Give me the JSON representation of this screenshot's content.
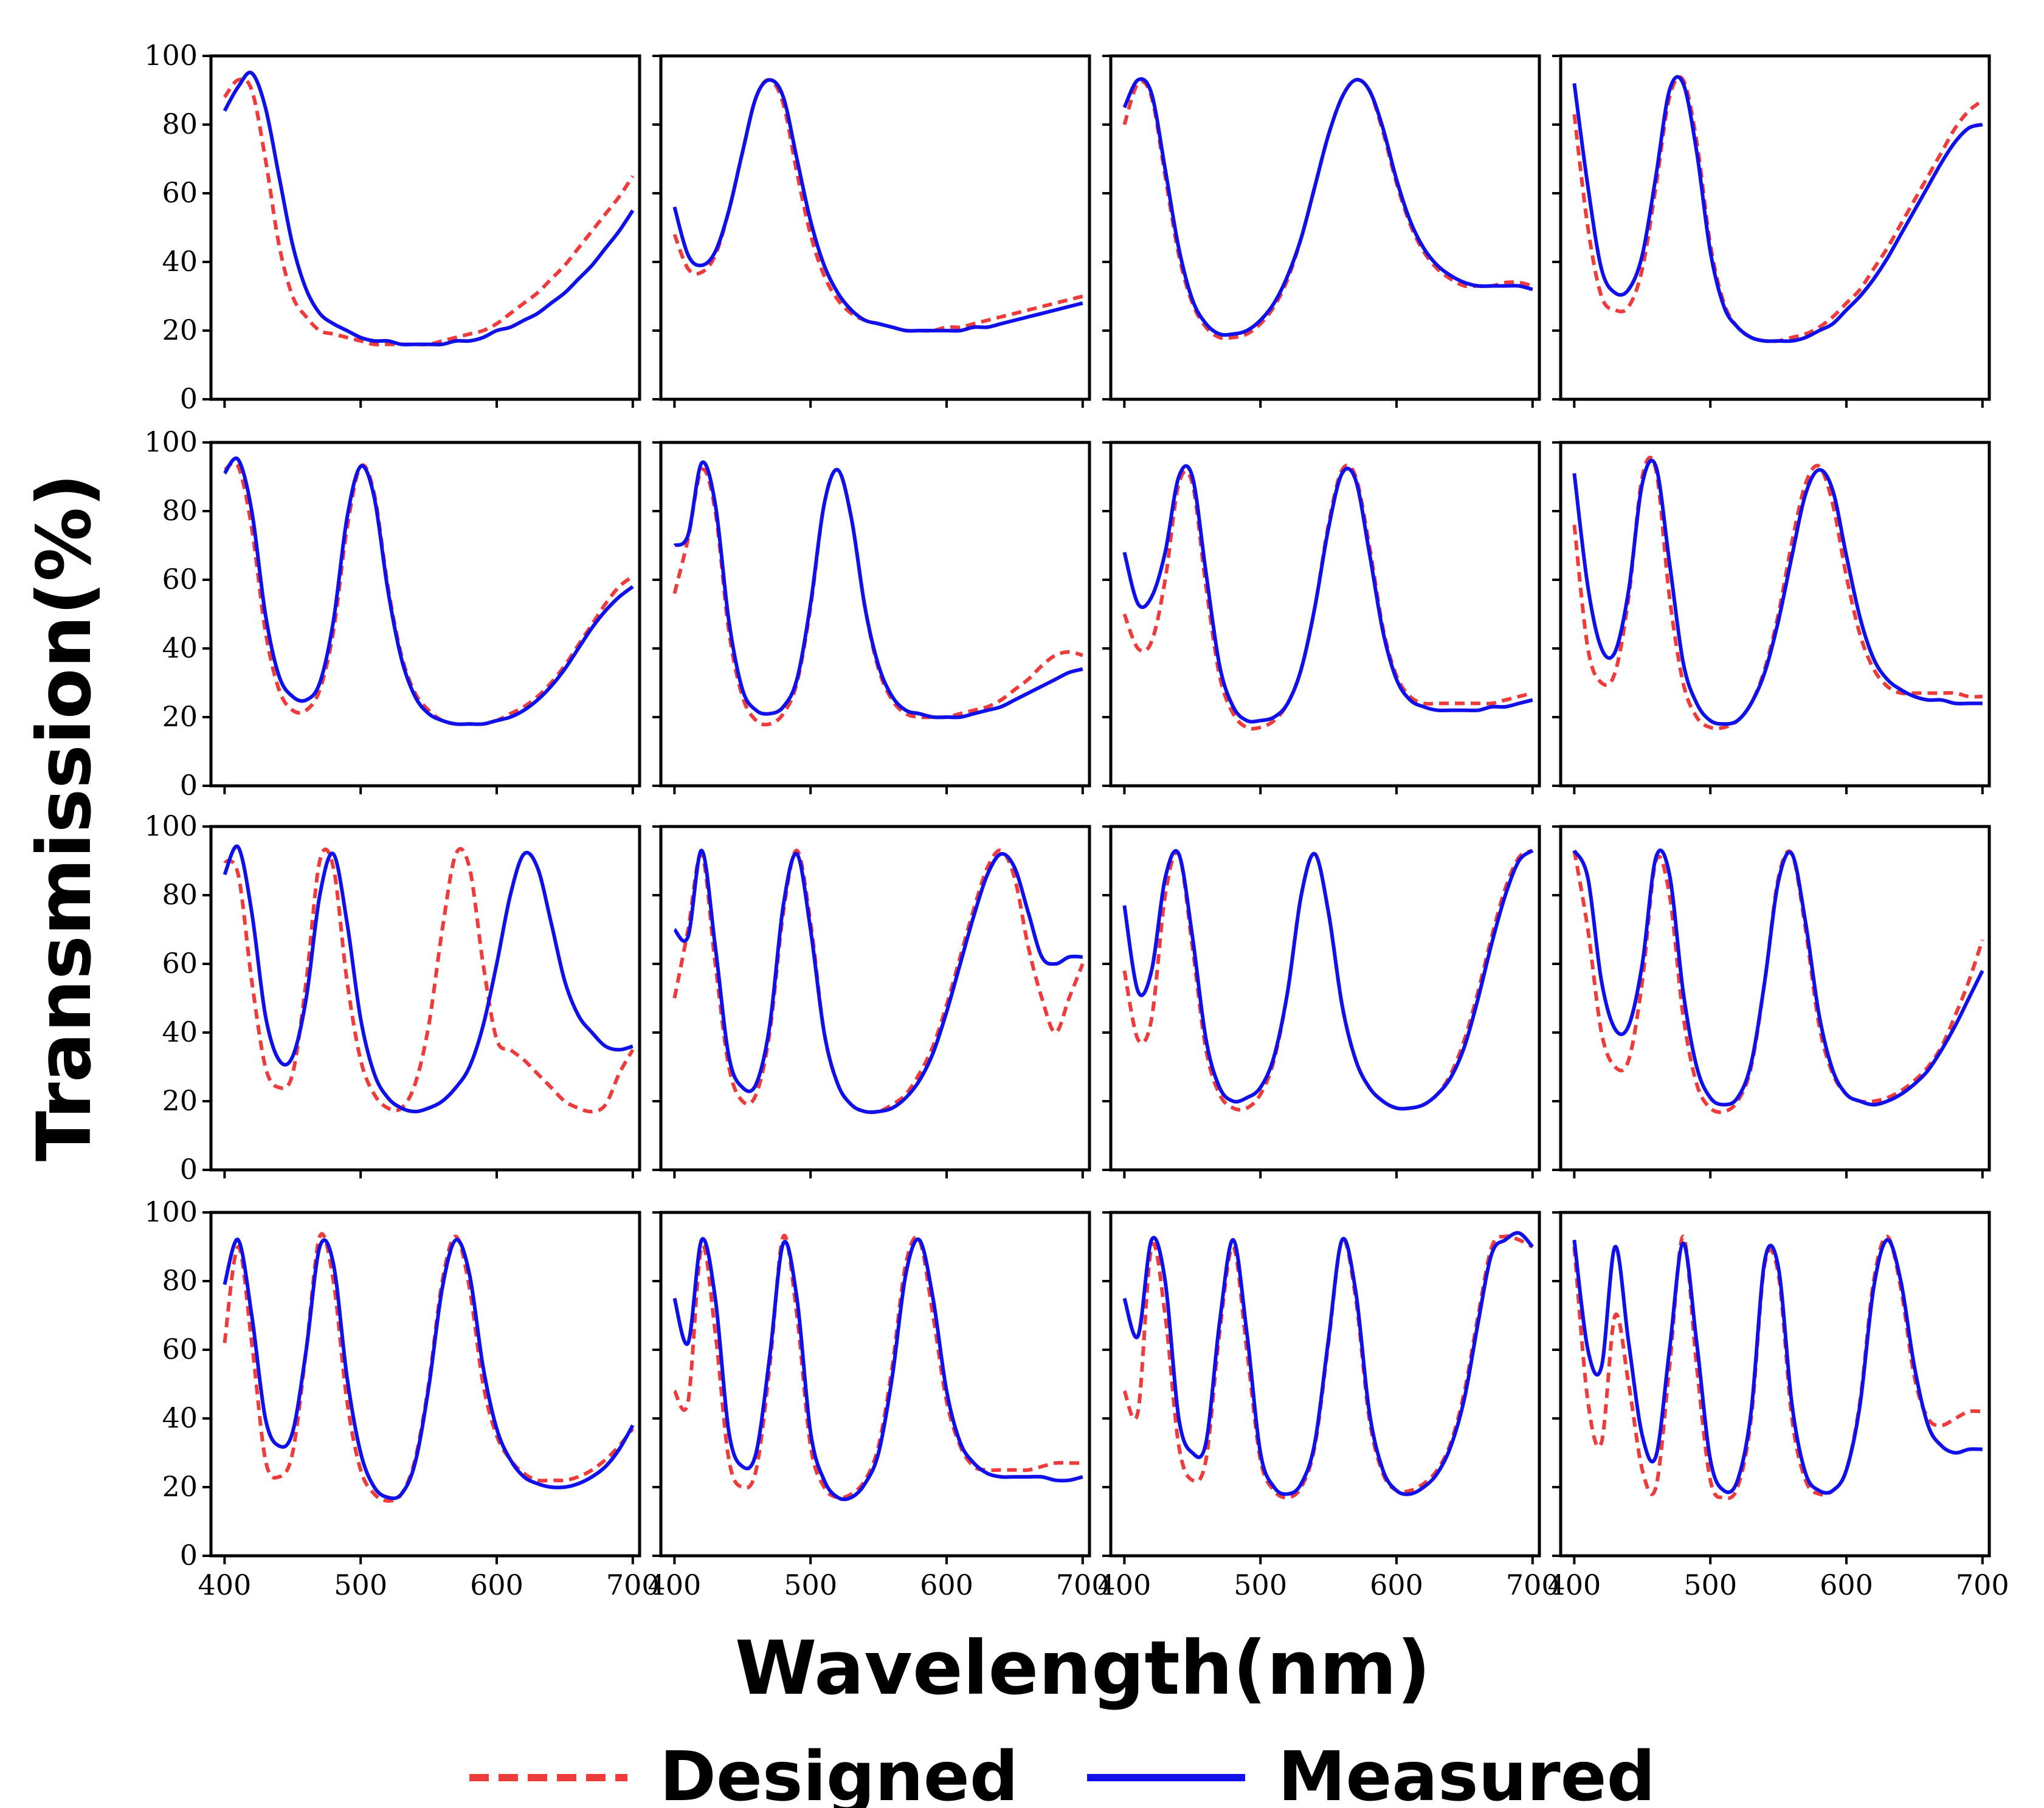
{
  "chart_data": {
    "type": "line",
    "layout": "4x4 grid of small multiples",
    "xlabel": "Wavelength(nm)",
    "ylabel": "Transmission(%)",
    "xlim": [
      390,
      705
    ],
    "ylim": [
      0,
      100
    ],
    "xticks": [
      400,
      500,
      600,
      700
    ],
    "yticks": [
      0,
      20,
      40,
      60,
      80,
      100
    ],
    "grid": false,
    "legend": {
      "placement": "bottom-center",
      "entries": [
        {
          "label": "Designed",
          "color": "#ee3b3b",
          "style": "dashed"
        },
        {
          "label": "Measured",
          "color": "#1010e8",
          "style": "solid"
        }
      ]
    },
    "x": [
      400,
      410,
      420,
      430,
      440,
      450,
      460,
      470,
      480,
      490,
      500,
      510,
      520,
      530,
      540,
      550,
      560,
      570,
      580,
      590,
      600,
      610,
      620,
      630,
      640,
      650,
      660,
      670,
      680,
      690,
      700
    ],
    "panels": [
      {
        "designed": [
          88,
          93,
          90,
          70,
          45,
          30,
          24,
          20,
          19,
          18,
          17,
          16,
          16,
          16,
          16,
          16,
          17,
          18,
          19,
          20,
          22,
          25,
          28,
          31,
          35,
          39,
          44,
          49,
          54,
          59,
          65
        ],
        "measured": [
          84,
          91,
          95,
          85,
          65,
          45,
          32,
          25,
          22,
          20,
          18,
          17,
          17,
          16,
          16,
          16,
          16,
          17,
          17,
          18,
          20,
          21,
          23,
          25,
          28,
          31,
          35,
          39,
          44,
          49,
          55
        ]
      },
      {
        "designed": [
          48,
          38,
          37,
          42,
          55,
          72,
          88,
          93,
          86,
          66,
          48,
          36,
          29,
          25,
          23,
          22,
          21,
          20,
          20,
          20,
          21,
          21,
          22,
          23,
          24,
          25,
          26,
          27,
          28,
          29,
          30
        ],
        "measured": [
          56,
          42,
          39,
          43,
          55,
          72,
          88,
          93,
          88,
          70,
          52,
          39,
          31,
          26,
          23,
          22,
          21,
          20,
          20,
          20,
          20,
          20,
          21,
          21,
          22,
          23,
          24,
          25,
          26,
          27,
          28
        ]
      },
      {
        "designed": [
          80,
          92,
          88,
          65,
          42,
          28,
          21,
          18,
          18,
          19,
          22,
          27,
          35,
          47,
          62,
          77,
          88,
          93,
          90,
          78,
          63,
          51,
          43,
          38,
          35,
          33,
          33,
          33,
          34,
          34,
          33
        ],
        "measured": [
          85,
          93,
          89,
          67,
          44,
          29,
          22,
          19,
          19,
          20,
          23,
          28,
          36,
          47,
          62,
          77,
          88,
          93,
          90,
          79,
          64,
          52,
          44,
          39,
          36,
          34,
          33,
          33,
          33,
          33,
          32
        ]
      },
      {
        "designed": [
          83,
          50,
          30,
          26,
          27,
          38,
          62,
          88,
          93,
          75,
          45,
          28,
          21,
          18,
          17,
          17,
          18,
          19,
          21,
          24,
          28,
          32,
          38,
          44,
          51,
          58,
          65,
          72,
          79,
          84,
          87
        ],
        "measured": [
          92,
          62,
          38,
          31,
          32,
          42,
          65,
          90,
          92,
          72,
          43,
          27,
          21,
          18,
          17,
          17,
          17,
          18,
          20,
          22,
          26,
          30,
          35,
          41,
          48,
          55,
          62,
          69,
          75,
          79,
          80
        ]
      },
      {
        "designed": [
          92,
          93,
          75,
          45,
          28,
          22,
          22,
          28,
          45,
          75,
          93,
          85,
          58,
          38,
          27,
          22,
          19,
          18,
          18,
          18,
          19,
          21,
          23,
          26,
          30,
          35,
          41,
          47,
          53,
          58,
          61
        ],
        "measured": [
          91,
          95,
          80,
          50,
          32,
          26,
          25,
          30,
          48,
          78,
          93,
          84,
          57,
          37,
          26,
          21,
          19,
          18,
          18,
          18,
          19,
          20,
          22,
          25,
          29,
          34,
          40,
          46,
          51,
          55,
          58
        ]
      },
      {
        "designed": [
          56,
          72,
          92,
          80,
          45,
          26,
          19,
          18,
          21,
          30,
          52,
          82,
          92,
          78,
          52,
          34,
          25,
          21,
          20,
          20,
          20,
          21,
          22,
          23,
          25,
          28,
          31,
          35,
          38,
          39,
          38
        ],
        "measured": [
          70,
          73,
          94,
          82,
          48,
          28,
          22,
          21,
          23,
          31,
          53,
          82,
          92,
          78,
          52,
          35,
          26,
          22,
          21,
          20,
          20,
          20,
          21,
          22,
          23,
          25,
          27,
          29,
          31,
          33,
          34
        ]
      },
      {
        "designed": [
          50,
          40,
          42,
          60,
          88,
          88,
          58,
          32,
          21,
          17,
          17,
          19,
          24,
          34,
          52,
          76,
          92,
          90,
          70,
          46,
          32,
          26,
          24,
          24,
          24,
          24,
          24,
          24,
          25,
          26,
          27
        ],
        "measured": [
          68,
          53,
          55,
          68,
          90,
          90,
          62,
          35,
          23,
          19,
          19,
          20,
          24,
          34,
          52,
          75,
          91,
          89,
          68,
          45,
          31,
          25,
          23,
          22,
          22,
          22,
          22,
          23,
          23,
          24,
          25
        ]
      },
      {
        "designed": [
          76,
          40,
          30,
          33,
          55,
          90,
          92,
          55,
          30,
          20,
          17,
          17,
          19,
          24,
          34,
          50,
          71,
          88,
          93,
          82,
          61,
          44,
          34,
          29,
          27,
          27,
          27,
          27,
          27,
          26,
          26
        ],
        "measured": [
          91,
          58,
          40,
          39,
          57,
          88,
          93,
          65,
          36,
          24,
          19,
          18,
          19,
          24,
          33,
          48,
          67,
          85,
          92,
          86,
          67,
          49,
          37,
          31,
          28,
          26,
          25,
          25,
          24,
          24,
          24
        ]
      },
      {
        "designed": [
          90,
          86,
          55,
          30,
          24,
          28,
          55,
          90,
          88,
          55,
          32,
          22,
          18,
          18,
          25,
          42,
          70,
          92,
          88,
          60,
          38,
          35,
          32,
          28,
          24,
          20,
          18,
          17,
          19,
          28,
          35
        ],
        "measured": [
          86,
          94,
          75,
          45,
          32,
          33,
          50,
          80,
          92,
          72,
          44,
          28,
          21,
          18,
          17,
          18,
          20,
          24,
          30,
          42,
          60,
          80,
          92,
          88,
          72,
          55,
          45,
          40,
          36,
          35,
          36
        ]
      },
      {
        "designed": [
          50,
          70,
          92,
          60,
          30,
          20,
          22,
          40,
          75,
          93,
          72,
          40,
          25,
          19,
          17,
          17,
          19,
          22,
          28,
          36,
          48,
          62,
          76,
          88,
          93,
          85,
          65,
          50,
          40,
          50,
          60
        ],
        "measured": [
          70,
          68,
          93,
          65,
          33,
          24,
          25,
          42,
          77,
          92,
          70,
          40,
          25,
          19,
          17,
          17,
          18,
          21,
          26,
          34,
          46,
          60,
          74,
          86,
          92,
          88,
          75,
          62,
          60,
          62,
          62
        ]
      },
      {
        "designed": [
          58,
          38,
          44,
          80,
          92,
          65,
          35,
          22,
          18,
          18,
          22,
          32,
          52,
          80,
          92,
          75,
          48,
          32,
          24,
          20,
          18,
          18,
          19,
          22,
          28,
          38,
          52,
          68,
          82,
          91,
          93
        ],
        "measured": [
          77,
          52,
          58,
          85,
          92,
          68,
          38,
          24,
          20,
          21,
          24,
          33,
          52,
          80,
          92,
          75,
          48,
          32,
          24,
          20,
          18,
          18,
          19,
          22,
          27,
          36,
          50,
          66,
          80,
          90,
          93
        ]
      },
      {
        "designed": [
          93,
          70,
          40,
          30,
          32,
          55,
          90,
          80,
          45,
          25,
          18,
          17,
          20,
          30,
          55,
          85,
          92,
          70,
          42,
          28,
          22,
          20,
          20,
          21,
          23,
          26,
          30,
          36,
          45,
          55,
          67
        ],
        "measured": [
          93,
          85,
          55,
          41,
          42,
          60,
          91,
          86,
          52,
          30,
          21,
          19,
          21,
          31,
          55,
          84,
          92,
          72,
          45,
          29,
          22,
          20,
          19,
          20,
          22,
          25,
          29,
          35,
          42,
          50,
          58
        ]
      },
      {
        "designed": [
          62,
          90,
          62,
          28,
          23,
          30,
          60,
          93,
          80,
          45,
          25,
          18,
          16,
          18,
          28,
          50,
          80,
          93,
          78,
          50,
          35,
          28,
          24,
          22,
          22,
          22,
          23,
          25,
          28,
          32,
          37
        ],
        "measured": [
          79,
          92,
          70,
          40,
          32,
          36,
          60,
          90,
          85,
          52,
          30,
          20,
          17,
          18,
          27,
          49,
          78,
          92,
          82,
          55,
          37,
          28,
          23,
          21,
          20,
          20,
          21,
          23,
          26,
          31,
          38
        ]
      },
      {
        "designed": [
          48,
          45,
          90,
          65,
          28,
          20,
          25,
          55,
          93,
          70,
          32,
          20,
          17,
          18,
          22,
          32,
          55,
          85,
          92,
          70,
          45,
          32,
          26,
          25,
          25,
          25,
          25,
          26,
          27,
          27,
          27
        ],
        "measured": [
          75,
          62,
          92,
          75,
          36,
          26,
          30,
          58,
          91,
          75,
          36,
          22,
          17,
          17,
          21,
          30,
          52,
          82,
          92,
          75,
          48,
          33,
          27,
          24,
          23,
          23,
          23,
          23,
          22,
          22,
          23
        ]
      },
      {
        "designed": [
          48,
          42,
          90,
          70,
          32,
          22,
          28,
          65,
          90,
          60,
          28,
          19,
          17,
          20,
          32,
          62,
          92,
          75,
          40,
          24,
          19,
          19,
          21,
          25,
          33,
          48,
          70,
          90,
          93,
          92,
          90
        ],
        "measured": [
          75,
          64,
          92,
          80,
          40,
          30,
          33,
          68,
          92,
          65,
          30,
          20,
          18,
          21,
          33,
          63,
          92,
          77,
          42,
          25,
          19,
          18,
          20,
          24,
          32,
          46,
          68,
          88,
          92,
          94,
          90
        ]
      },
      {
        "designed": [
          90,
          45,
          33,
          70,
          50,
          25,
          20,
          55,
          93,
          55,
          22,
          17,
          20,
          40,
          85,
          82,
          40,
          22,
          18,
          19,
          25,
          45,
          80,
          93,
          78,
          52,
          40,
          38,
          40,
          42,
          42
        ],
        "measured": [
          92,
          60,
          55,
          90,
          62,
          35,
          29,
          60,
          91,
          62,
          28,
          19,
          22,
          42,
          86,
          84,
          44,
          24,
          19,
          19,
          25,
          44,
          78,
          92,
          80,
          55,
          38,
          32,
          30,
          31,
          31
        ]
      }
    ]
  }
}
